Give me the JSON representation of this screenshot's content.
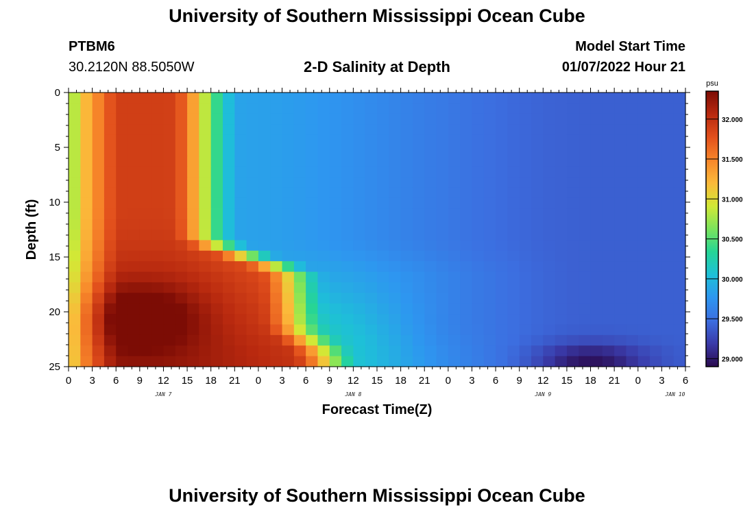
{
  "page": {
    "title": "University of Southern Mississippi Ocean Cube",
    "station": "PTBM6",
    "coords": "30.2120N  88.5050W",
    "model_start_label": "Model Start Time",
    "model_start_value": "01/07/2022 Hour 21",
    "footer_title": "University of Southern Mississippi Ocean Cube"
  },
  "chart_data": {
    "type": "heatmap",
    "title": "2-D Salinity at Depth",
    "xlabel": "Forecast Time(Z)",
    "ylabel": "Depth (ft)",
    "x_tick_labels": [
      "0",
      "3",
      "6",
      "9",
      "12",
      "15",
      "18",
      "21",
      "0",
      "3",
      "6",
      "9",
      "12",
      "15",
      "18",
      "21",
      "0",
      "3",
      "6",
      "9",
      "12",
      "15",
      "18",
      "21",
      "0",
      "3",
      "6"
    ],
    "x_range_hours": [
      0,
      78
    ],
    "day_labels": [
      {
        "text": "JAN 7",
        "hour": 12
      },
      {
        "text": "JAN 8",
        "hour": 36
      },
      {
        "text": "JAN 9",
        "hour": 60
      },
      {
        "text": "JAN 10",
        "hour": 84
      }
    ],
    "y_ticks": [
      0,
      5,
      10,
      15,
      20,
      25
    ],
    "y_range_ft": [
      0,
      25
    ],
    "y_inverted": true,
    "colorbar": {
      "unit": "psu",
      "min": 28.9,
      "max": 32.35,
      "tick_labels": [
        "29.000",
        "29.500",
        "30.000",
        "30.500",
        "31.000",
        "31.500",
        "32.000"
      ],
      "colors": [
        "#2a0a4e",
        "#3a3aa8",
        "#3c6ee0",
        "#2e96f0",
        "#1ec0d8",
        "#25d596",
        "#7be45c",
        "#d2e836",
        "#fbb93a",
        "#f7862a",
        "#e2501c",
        "#b8290f",
        "#7c0c05"
      ]
    },
    "grid": {
      "cols": 52,
      "rows": 26
    },
    "salinity_field": {
      "description": "Salinity (psu) by hour (0-78) and depth (0-25 ft)",
      "surface_fresh_edge": 30.8,
      "upper_max": 31.9,
      "core_max": 32.35,
      "core_location": {
        "hour": 9,
        "depth_ft": 20.5
      },
      "front_upper_hour": 19,
      "front_lower_hour": 30,
      "mid_value": 29.8,
      "late_value": 29.4,
      "bottom_min": 28.95,
      "bottom_min_location": {
        "hour": 66,
        "depth_ft": 24.5
      }
    }
  }
}
